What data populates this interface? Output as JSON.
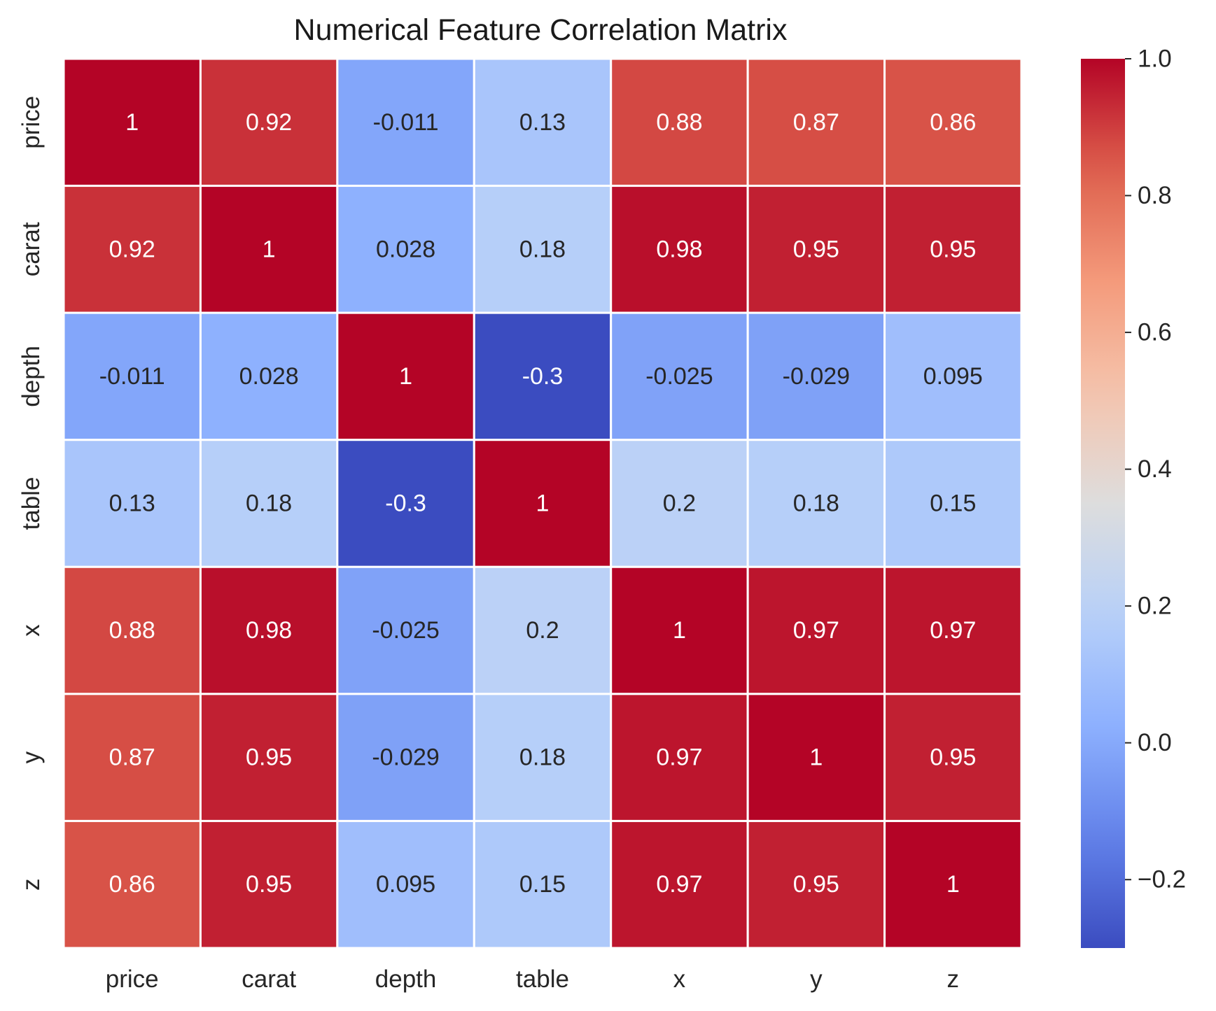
{
  "chart_data": {
    "type": "heatmap",
    "title": "Numerical Feature Correlation Matrix",
    "xlabel": "",
    "ylabel": "",
    "x_categories": [
      "price",
      "carat",
      "depth",
      "table",
      "x",
      "y",
      "z"
    ],
    "y_categories": [
      "price",
      "carat",
      "depth",
      "table",
      "x",
      "y",
      "z"
    ],
    "values": [
      [
        1,
        0.92,
        -0.011,
        0.13,
        0.88,
        0.87,
        0.86
      ],
      [
        0.92,
        1,
        0.028,
        0.18,
        0.98,
        0.95,
        0.95
      ],
      [
        -0.011,
        0.028,
        1,
        -0.3,
        -0.025,
        -0.029,
        0.095
      ],
      [
        0.13,
        0.18,
        -0.3,
        1,
        0.2,
        0.18,
        0.15
      ],
      [
        0.88,
        0.98,
        -0.025,
        0.2,
        1,
        0.97,
        0.97
      ],
      [
        0.87,
        0.95,
        -0.029,
        0.18,
        0.97,
        1,
        0.95
      ],
      [
        0.86,
        0.95,
        0.095,
        0.15,
        0.97,
        0.95,
        1
      ]
    ],
    "annotations": [
      [
        "1",
        "0.92",
        "-0.011",
        "0.13",
        "0.88",
        "0.87",
        "0.86"
      ],
      [
        "0.92",
        "1",
        "0.028",
        "0.18",
        "0.98",
        "0.95",
        "0.95"
      ],
      [
        "-0.011",
        "0.028",
        "1",
        "-0.3",
        "-0.025",
        "-0.029",
        "0.095"
      ],
      [
        "0.13",
        "0.18",
        "-0.3",
        "1",
        "0.2",
        "0.18",
        "0.15"
      ],
      [
        "0.88",
        "0.98",
        "-0.025",
        "0.2",
        "1",
        "0.97",
        "0.97"
      ],
      [
        "0.87",
        "0.95",
        "-0.029",
        "0.18",
        "0.97",
        "1",
        "0.95"
      ],
      [
        "0.86",
        "0.95",
        "0.095",
        "0.15",
        "0.97",
        "0.95",
        "1"
      ]
    ],
    "colormap": "coolwarm",
    "vmin": -0.3,
    "vmax": 1.0,
    "colorbar": {
      "ticks": [
        1.0,
        0.8,
        0.6,
        0.4,
        0.2,
        0.0,
        -0.2
      ],
      "tick_labels": [
        "1.0",
        "0.8",
        "0.6",
        "0.4",
        "0.2",
        "0.0",
        "−0.2"
      ],
      "placement": "right"
    },
    "colors": {
      "cold": "#3b4cc0",
      "neutral": "#dddddd",
      "warm": "#b40426",
      "cell_border": "#ffffff",
      "text_light": "#ffffff",
      "text_dark": "#262626"
    },
    "grid": false
  }
}
